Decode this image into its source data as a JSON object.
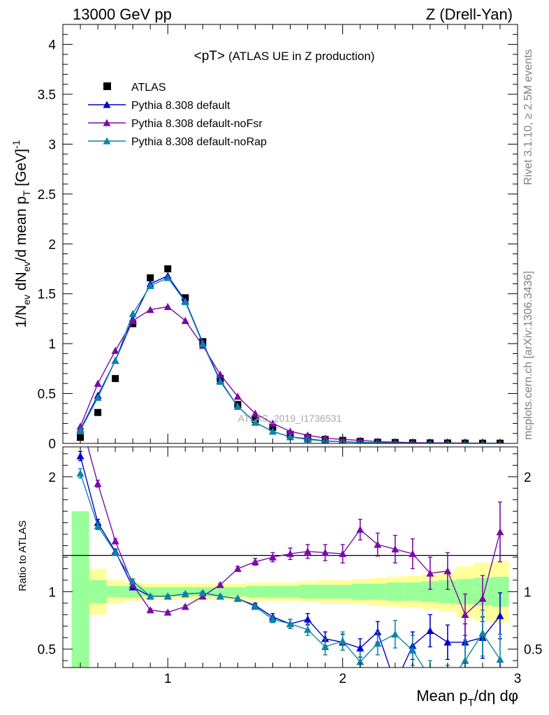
{
  "header": {
    "left": "13000 GeV pp",
    "right": "Z (Drell-Yan)"
  },
  "plot_title": {
    "main": "<pT>",
    "sub": "(ATLAS UE in Z production)"
  },
  "side_labels": {
    "rivet": "Rivet 3.1.10, ≥ 2.5M events",
    "mcplots": "mcplots.cern.ch [arXiv:1306.3436]"
  },
  "watermark": "ATLAS_2019_I1736531",
  "colors": {
    "data": "#000000",
    "default": "#0000cc",
    "noFsr": "#7b0aa8",
    "noRap": "#0a84a8",
    "band_green": "#99ff99",
    "band_yellow": "#ffff99"
  },
  "chart_data": [
    {
      "type": "line",
      "ylabel": "1/N_ev dN_ev/d mean p_T [GeV]^-1",
      "xlim": [
        0.4,
        3.0
      ],
      "ylim": [
        0,
        4.2
      ],
      "xticks": [
        1,
        2,
        3
      ],
      "yticks": [
        0,
        0.5,
        1,
        1.5,
        2,
        2.5,
        3,
        3.5,
        4
      ],
      "legend_position": "top-left",
      "x": [
        0.5,
        0.6,
        0.7,
        0.8,
        0.9,
        1.0,
        1.1,
        1.2,
        1.3,
        1.4,
        1.5,
        1.6,
        1.7,
        1.8,
        1.9,
        2.0,
        2.1,
        2.2,
        2.3,
        2.4,
        2.5,
        2.6,
        2.7,
        2.8,
        2.9
      ],
      "series": [
        {
          "name": "ATLAS",
          "style": "points",
          "values": [
            0.06,
            0.31,
            0.65,
            1.2,
            1.66,
            1.75,
            1.46,
            1.02,
            0.65,
            0.39,
            0.24,
            0.16,
            0.09,
            0.06,
            0.04,
            0.03,
            0.02,
            0.012,
            0.009,
            0.006,
            0.005,
            0.004,
            0.003,
            0.002,
            0.002
          ]
        },
        {
          "name": "Pythia 8.308 default",
          "style": "line",
          "values": [
            0.14,
            0.48,
            0.83,
            1.24,
            1.6,
            1.68,
            1.43,
            1.01,
            0.63,
            0.37,
            0.21,
            0.12,
            0.065,
            0.046,
            0.024,
            0.017,
            0.01,
            0.006,
            0.004,
            0.003,
            0.003,
            0.002,
            0.002,
            0.001,
            0.001
          ]
        },
        {
          "name": "Pythia 8.308 default-noFsr",
          "style": "line",
          "values": [
            0.17,
            0.6,
            0.93,
            1.23,
            1.34,
            1.37,
            1.23,
            0.98,
            0.69,
            0.47,
            0.3,
            0.2,
            0.12,
            0.082,
            0.052,
            0.04,
            0.03,
            0.018,
            0.013,
            0.008,
            0.006,
            0.005,
            0.003,
            0.002,
            0.002
          ]
        },
        {
          "name": "Pythia 8.308 default-noRap",
          "style": "line",
          "values": [
            0.13,
            0.46,
            0.83,
            1.3,
            1.58,
            1.66,
            1.42,
            1.0,
            0.62,
            0.37,
            0.21,
            0.12,
            0.065,
            0.04,
            0.022,
            0.016,
            0.008,
            0.006,
            0.004,
            0.003,
            0.002,
            0.002,
            0.001,
            0.001,
            0.001
          ]
        }
      ]
    },
    {
      "type": "line",
      "ylabel": "Ratio to ATLAS",
      "xlabel": "Mean p_T/dη dφ",
      "xlim": [
        0.4,
        3.0
      ],
      "ylim": [
        0.34,
        2.26
      ],
      "xticks": [
        1,
        2,
        3
      ],
      "yticks": [
        0.5,
        1,
        2
      ],
      "reference_line": 1,
      "bands": {
        "edges": [
          0.45,
          0.55,
          0.65,
          0.75,
          0.85,
          0.95,
          1.05,
          1.15,
          1.25,
          1.35,
          1.45,
          1.55,
          1.65,
          1.75,
          1.85,
          1.95,
          2.05,
          2.15,
          2.25,
          2.35,
          2.45,
          2.55,
          2.65,
          2.75,
          2.85,
          2.95
        ],
        "green_halfwidth": [
          0.7,
          0.1,
          0.05,
          0.05,
          0.04,
          0.04,
          0.04,
          0.04,
          0.04,
          0.04,
          0.05,
          0.05,
          0.05,
          0.06,
          0.06,
          0.06,
          0.07,
          0.07,
          0.08,
          0.08,
          0.09,
          0.1,
          0.11,
          0.12,
          0.13
        ],
        "yellow_halfwidth": [
          0.7,
          0.2,
          0.1,
          0.08,
          0.07,
          0.07,
          0.07,
          0.07,
          0.07,
          0.07,
          0.08,
          0.08,
          0.08,
          0.09,
          0.1,
          0.1,
          0.11,
          0.12,
          0.13,
          0.14,
          0.15,
          0.17,
          0.22,
          0.25,
          0.27
        ]
      },
      "x": [
        0.5,
        0.6,
        0.7,
        0.8,
        0.9,
        1.0,
        1.1,
        1.2,
        1.3,
        1.4,
        1.5,
        1.6,
        1.7,
        1.8,
        1.9,
        2.0,
        2.1,
        2.2,
        2.3,
        2.4,
        2.5,
        2.6,
        2.7,
        2.8,
        2.9
      ],
      "series": [
        {
          "name": "Pythia 8.308 default",
          "values": [
            2.18,
            1.6,
            1.35,
            1.04,
            0.96,
            0.96,
            0.98,
            0.99,
            0.96,
            0.94,
            0.88,
            0.78,
            0.72,
            0.76,
            0.59,
            0.56,
            0.51,
            0.65,
            0.2,
            0.53,
            0.66,
            0.56,
            0.56,
            0.6,
            0.79
          ],
          "errors": [
            0.04,
            0.03,
            0.02,
            0.02,
            0.01,
            0.01,
            0.01,
            0.01,
            0.01,
            0.01,
            0.02,
            0.03,
            0.04,
            0.05,
            0.06,
            0.07,
            0.08,
            0.09,
            0.1,
            0.12,
            0.14,
            0.15,
            0.16,
            0.18,
            0.2
          ]
        },
        {
          "name": "Pythia 8.308 default-noFsr",
          "values": [
            2.5,
            1.94,
            1.44,
            1.06,
            0.84,
            0.82,
            0.87,
            0.96,
            1.06,
            1.2,
            1.26,
            1.3,
            1.33,
            1.35,
            1.34,
            1.33,
            1.54,
            1.41,
            1.37,
            1.33,
            1.16,
            1.18,
            0.8,
            0.94,
            1.52
          ],
          "errors": [
            0.05,
            0.03,
            0.02,
            0.02,
            0.01,
            0.01,
            0.01,
            0.01,
            0.01,
            0.02,
            0.03,
            0.04,
            0.05,
            0.06,
            0.07,
            0.08,
            0.09,
            0.1,
            0.12,
            0.13,
            0.14,
            0.16,
            0.18,
            0.2,
            0.26
          ]
        },
        {
          "name": "Pythia 8.308 default-noRap",
          "values": [
            2.03,
            1.57,
            1.34,
            1.09,
            0.96,
            0.96,
            0.98,
            0.99,
            0.96,
            0.94,
            0.87,
            0.76,
            0.72,
            0.67,
            0.52,
            0.57,
            0.39,
            0.55,
            0.63,
            0.49,
            0.25,
            0.2,
            0.4,
            0.64,
            0.41
          ],
          "errors": [
            0.04,
            0.03,
            0.02,
            0.02,
            0.01,
            0.01,
            0.01,
            0.01,
            0.01,
            0.01,
            0.02,
            0.03,
            0.04,
            0.05,
            0.07,
            0.08,
            0.09,
            0.1,
            0.12,
            0.13,
            0.15,
            0.16,
            0.18,
            0.2,
            0.22
          ]
        }
      ]
    }
  ]
}
